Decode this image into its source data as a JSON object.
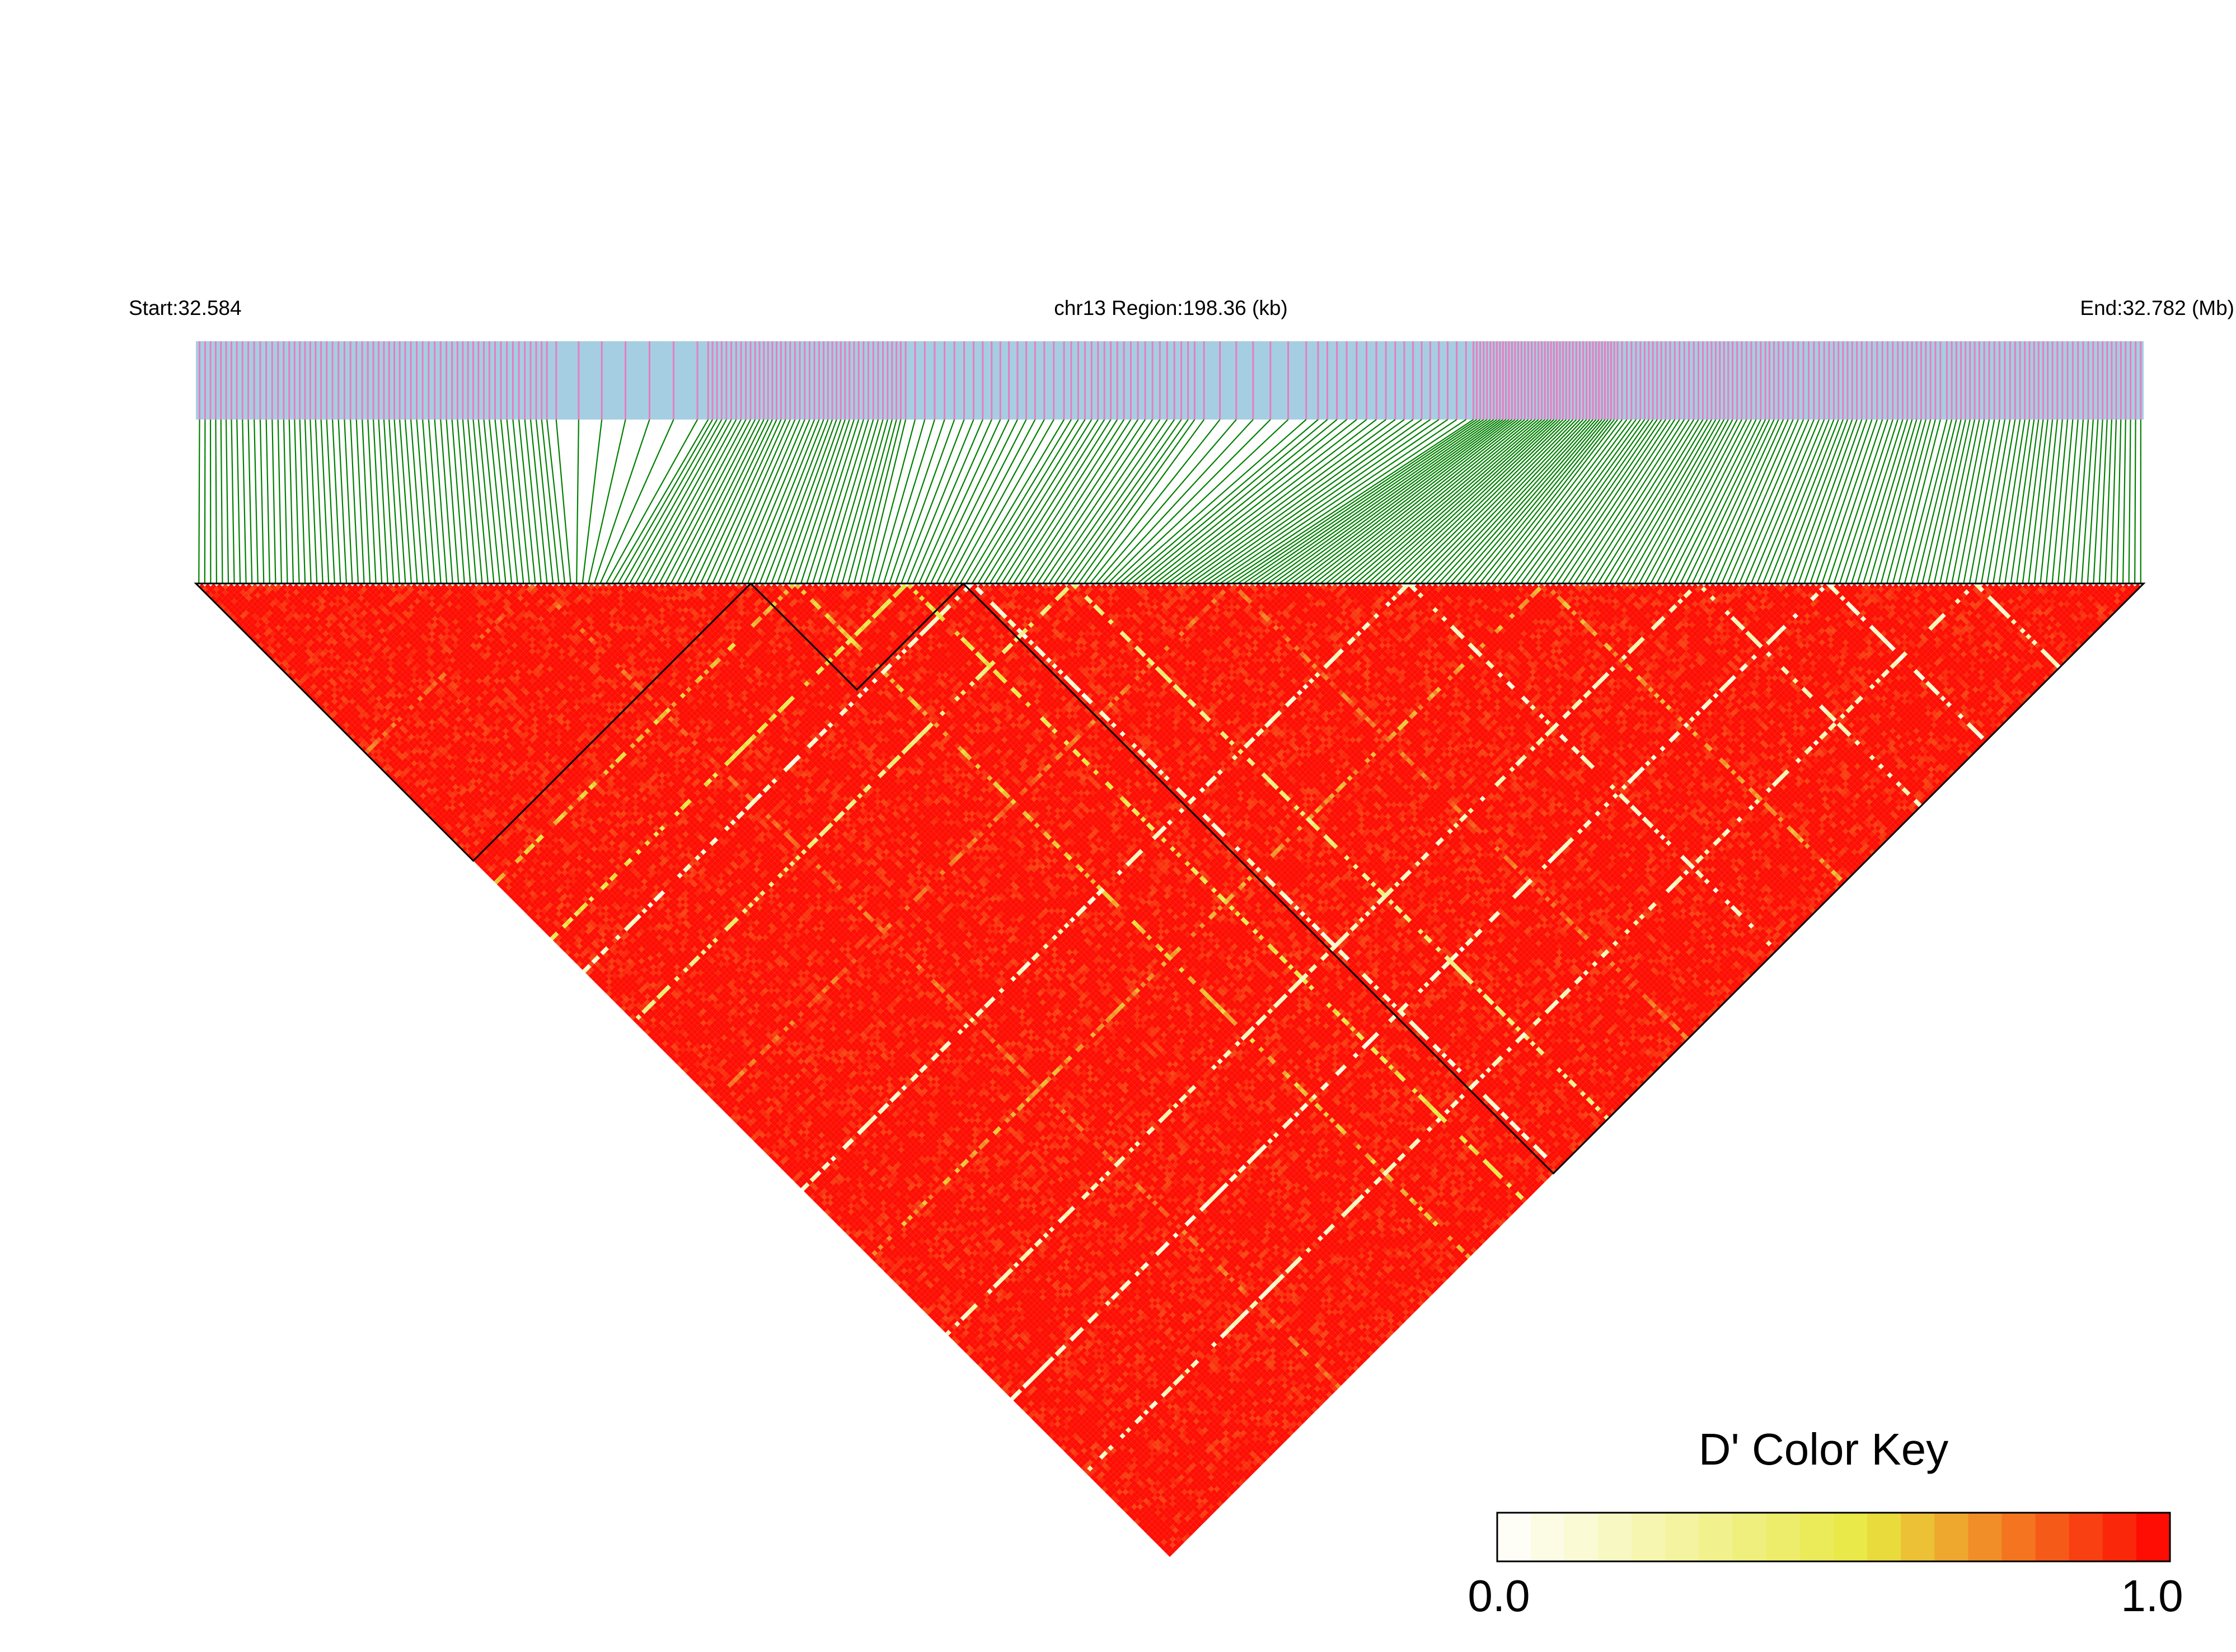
{
  "chart_data": {
    "type": "heatmap",
    "title": "",
    "header": {
      "start_label": "Start:32.584",
      "region_label": "chr13 Region:198.36 (kb)",
      "end_label": "End:32.782 (Mb)"
    },
    "chromosome": "chr13",
    "region_start_mb": 32.584,
    "region_end_mb": 32.782,
    "region_length_kb": 198.36,
    "snp_count": 330,
    "snp_density_segments": [
      {
        "from_kb": 0,
        "to_kb": 36,
        "share": 0.19
      },
      {
        "from_kb": 36,
        "to_kb": 52,
        "share": 0.02
      },
      {
        "from_kb": 52,
        "to_kb": 72,
        "share": 0.13
      },
      {
        "from_kb": 72,
        "to_kb": 88,
        "share": 0.05
      },
      {
        "from_kb": 88,
        "to_kb": 102,
        "share": 0.06
      },
      {
        "from_kb": 102,
        "to_kb": 114,
        "share": 0.02
      },
      {
        "from_kb": 114,
        "to_kb": 130,
        "share": 0.05
      },
      {
        "from_kb": 130,
        "to_kb": 145,
        "share": 0.14
      },
      {
        "from_kb": 145,
        "to_kb": 160,
        "share": 0.1
      },
      {
        "from_kb": 160,
        "to_kb": 178,
        "share": 0.11
      },
      {
        "from_kb": 178,
        "to_kb": 198.36,
        "share": 0.13
      }
    ],
    "colors": {
      "track_background": "#a6cee3",
      "snp_mark": "#e57fbf",
      "connector": "#008000",
      "outline": "#000000"
    },
    "ld_blocks": [
      {
        "from_index": 0,
        "to_index": 93
      },
      {
        "from_index": 94,
        "to_index": 129
      },
      {
        "from_index": 130,
        "to_index": 329
      }
    ],
    "metric": "D'",
    "typical_value": 0.97,
    "low_value_lines": [
      {
        "snp_index": 57,
        "value": 0.72
      },
      {
        "snp_index": 101,
        "value": 0.55
      },
      {
        "snp_index": 120,
        "value": 0.45
      },
      {
        "snp_index": 131,
        "value": 0.05
      },
      {
        "snp_index": 148,
        "value": 0.3
      },
      {
        "snp_index": 175,
        "value": 0.7
      },
      {
        "snp_index": 205,
        "value": 0.08
      },
      {
        "snp_index": 228,
        "value": 0.6
      },
      {
        "snp_index": 254,
        "value": 0.12
      },
      {
        "snp_index": 276,
        "value": 0.05
      },
      {
        "snp_index": 301,
        "value": 0.1
      }
    ],
    "color_key": {
      "title": "D' Color Key",
      "min_label": "0.0",
      "max_label": "1.0",
      "min": 0.0,
      "max": 1.0,
      "low_color": "#ffffff",
      "mid_color": "#e8e840",
      "high_color": "#ff0000"
    }
  }
}
